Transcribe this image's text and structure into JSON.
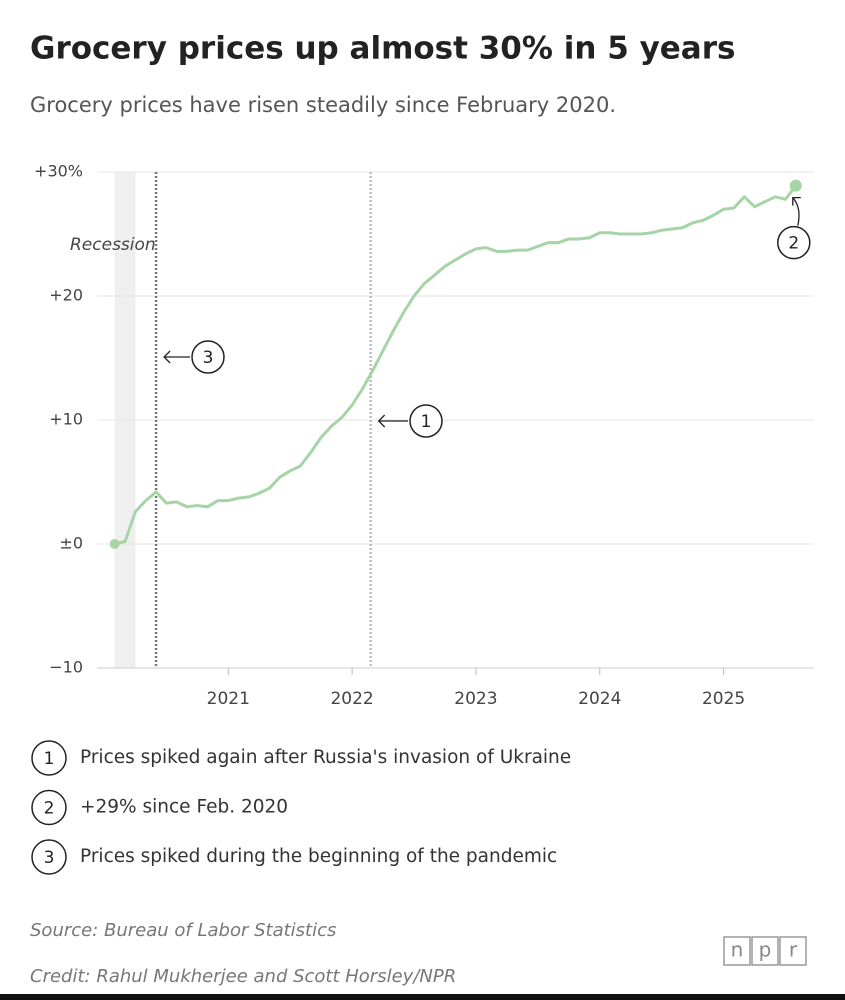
{
  "chart_data": {
    "type": "line",
    "title": "Grocery prices up almost 30% in 5 years",
    "subtitle": "Grocery prices have risen steadily since February 2020.",
    "color": "#a6d4a6",
    "x": [
      2020.083,
      2020.167,
      2020.25,
      2020.333,
      2020.417,
      2020.5,
      2020.583,
      2020.667,
      2020.75,
      2020.833,
      2020.917,
      2021,
      2021.083,
      2021.167,
      2021.25,
      2021.333,
      2021.417,
      2021.5,
      2021.583,
      2021.667,
      2021.75,
      2021.833,
      2021.917,
      2022,
      2022.083,
      2022.167,
      2022.25,
      2022.333,
      2022.417,
      2022.5,
      2022.583,
      2022.667,
      2022.75,
      2022.833,
      2022.917,
      2023,
      2023.083,
      2023.167,
      2023.25,
      2023.333,
      2023.417,
      2023.5,
      2023.583,
      2023.667,
      2023.75,
      2023.833,
      2023.917,
      2024,
      2024.083,
      2024.167,
      2024.25,
      2024.333,
      2024.417,
      2024.5,
      2024.583,
      2024.667,
      2024.75,
      2024.833,
      2024.917,
      2025,
      2025.083,
      2025.167,
      2025.25,
      2025.333,
      2025.417,
      2025.5,
      2025.583
    ],
    "values": [
      0,
      0.2,
      2.6,
      3.5,
      4.2,
      3.3,
      3.4,
      3.0,
      3.1,
      3.0,
      3.5,
      3.5,
      3.7,
      3.8,
      4.1,
      4.5,
      5.4,
      5.9,
      6.3,
      7.4,
      8.6,
      9.5,
      10.2,
      11.2,
      12.5,
      14.0,
      15.6,
      17.2,
      18.7,
      20.0,
      21.0,
      21.7,
      22.4,
      22.9,
      23.4,
      23.8,
      23.9,
      23.6,
      23.6,
      23.7,
      23.7,
      24.0,
      24.3,
      24.3,
      24.6,
      24.6,
      24.7,
      25.1,
      25.1,
      25.0,
      25.0,
      25.0,
      25.1,
      25.3,
      25.4,
      25.5,
      25.9,
      26.1,
      26.5,
      27.0,
      27.1,
      28.0,
      27.2,
      27.6,
      28.0,
      27.8,
      28.9
    ],
    "xlim": [
      2019.94,
      2025.73
    ],
    "xticks": [
      2021,
      2022,
      2023,
      2024,
      2025
    ],
    "ylim": [
      -10,
      30
    ],
    "yticks": [
      {
        "value": -10,
        "label": "−10"
      },
      {
        "value": 0,
        "label": "±0"
      },
      {
        "value": 10,
        "label": "+10"
      },
      {
        "value": 20,
        "label": "+20"
      },
      {
        "value": 30,
        "label": "+30%"
      }
    ],
    "grid": true,
    "recession": {
      "label": "Recession",
      "start": 2020.083,
      "end": 2020.25
    },
    "annotations": [
      {
        "label": "1",
        "text": "Prices spiked again after Russia's invasion of Ukraine",
        "x": 2022.15
      },
      {
        "label": "2",
        "text": "+29% since Feb. 2020"
      },
      {
        "label": "3",
        "text": "Prices spiked during the beginning of the pandemic",
        "x": 2020.417
      }
    ],
    "source": "Source: Bureau of Labor Statistics",
    "credit": "Credit: Rahul Mukherjee and Scott Horsley/NPR",
    "logo": [
      "n",
      "p",
      "r"
    ]
  }
}
